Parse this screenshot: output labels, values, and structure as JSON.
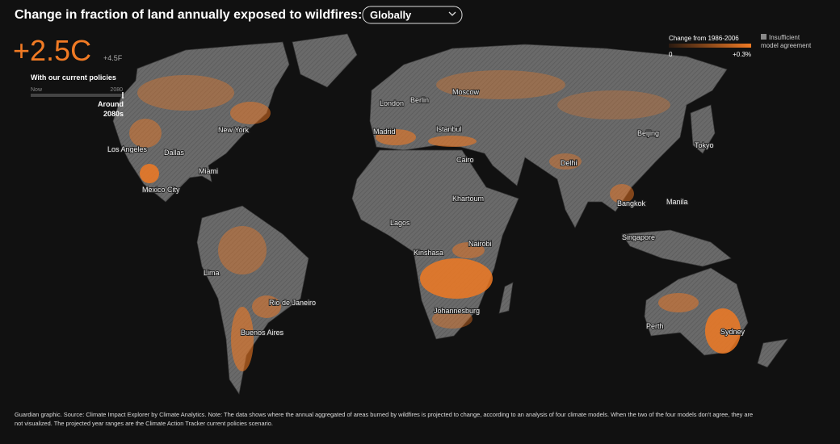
{
  "header": {
    "title": "Change in fraction of land annually exposed to wildfires:",
    "dropdown": "Globally"
  },
  "scenario": {
    "temp_c": "+2.5C",
    "temp_f": "+4.5F",
    "policy": "With our current policies",
    "slider_start": "Now",
    "slider_end": "2080",
    "period_line1": "Around",
    "period_line2": "2080s"
  },
  "legend": {
    "title": "Change from 1986-2006",
    "min": "0",
    "max": "+0.3%",
    "insufficient_line1": "Insufficient",
    "insufficient_line2": "model agreement"
  },
  "cities": [
    "New York",
    "Los Angeles",
    "Dallas",
    "Miami",
    "Mexico City",
    "Lima",
    "Rio de Janeiro",
    "Buenos Aires",
    "London",
    "Berlin",
    "Moscow",
    "Madrid",
    "Istanbul",
    "Cairo",
    "Khartoum",
    "Lagos",
    "Nairobi",
    "Kinshasa",
    "Johannesburg",
    "Delhi",
    "Beijing",
    "Tokyo",
    "Bangkok",
    "Manila",
    "Singapore",
    "Perth",
    "Sydney"
  ],
  "footnote": {
    "line1": "Guardian graphic. Source: Climate Impact Explorer by Climate Analytics. Note: The data shows where the annual aggregated of areas burned by wildfires is projected to change, according to an analysis of four climate models. When the two of the four models don't agree, they are",
    "line2": "not visualized. The projected year ranges are the Climate Action Tracker current policies scenario."
  }
}
